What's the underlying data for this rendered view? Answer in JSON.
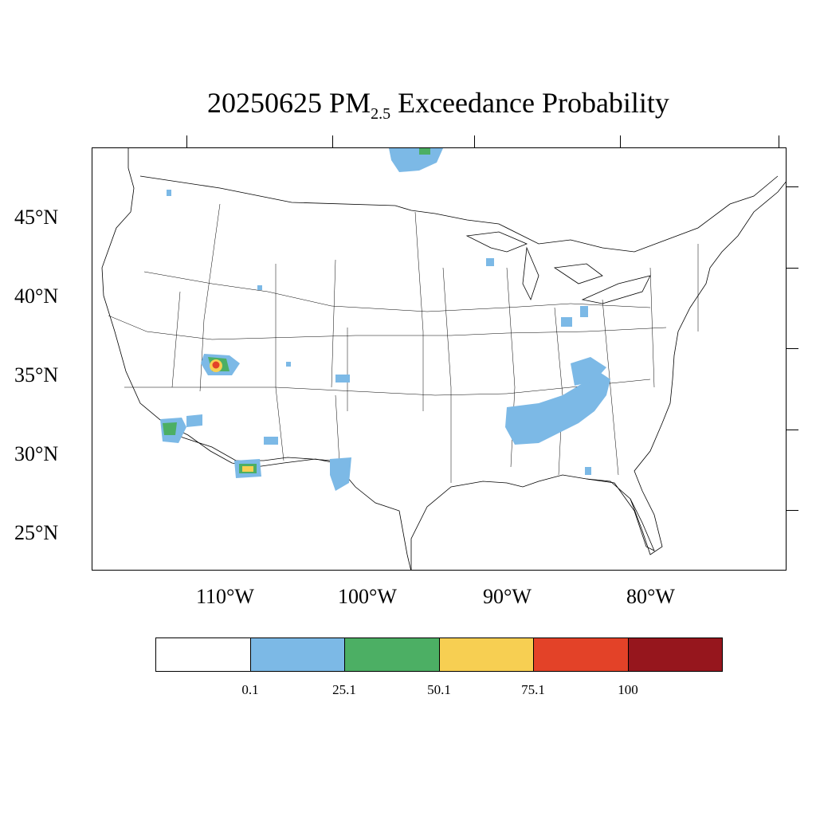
{
  "title": {
    "prefix": "20250625 PM",
    "sub": "2.5",
    "suffix": " Exceedance Probability"
  },
  "axes": {
    "lat_labels": [
      "45°N",
      "40°N",
      "35°N",
      "30°N",
      "25°N"
    ],
    "lon_labels": [
      "110°W",
      "100°W",
      "90°W",
      "80°W"
    ]
  },
  "legend": {
    "colors": [
      "#ffffff",
      "#7cb9e6",
      "#4caf64",
      "#f7cf52",
      "#e34228",
      "#96161d"
    ],
    "labels": [
      "0.1",
      "25.1",
      "50.1",
      "75.1",
      "100"
    ]
  },
  "map_data": {
    "type": "probability-contour-map",
    "region": "Contiguous United States",
    "probability_classes": [
      "0.1–25.1",
      "25.1–50.1",
      "50.1–75.1",
      "75.1–100"
    ],
    "hotspots": [
      {
        "area": "Northern Arizona / southern Utah",
        "lat": 35.6,
        "lon": -111.0,
        "max_class": "75.1–100"
      },
      {
        "area": "Southern Arizona / New Mexico border",
        "lat": 29.2,
        "lon": -108.8,
        "max_class": "50.1–75.1"
      },
      {
        "area": "Southern California / Arizona border",
        "lat": 31.5,
        "lon": -114.3,
        "max_class": "25.1–50.1"
      },
      {
        "area": "Minnesota / Ontario border",
        "lat": 49.0,
        "lon": -95.5,
        "max_class": "25.1–50.1"
      },
      {
        "area": "Tennessee Valley / Southeast",
        "lat": 33.5,
        "lon": -87.0,
        "max_class": "0.1–25.1"
      },
      {
        "area": "Texas Panhandle",
        "lat": 29.0,
        "lon": -101.5,
        "max_class": "0.1–25.1"
      },
      {
        "area": "Eastern Colorado",
        "lat": 34.8,
        "lon": -101.8,
        "max_class": "0.1–25.1"
      },
      {
        "area": "Ohio",
        "lat": 38.5,
        "lon": -84.5,
        "max_class": "0.1–25.1"
      }
    ]
  }
}
